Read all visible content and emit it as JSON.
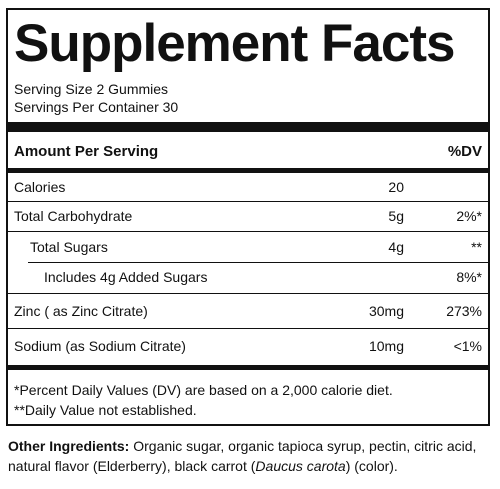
{
  "title": "Supplement Facts",
  "serving_size": "Serving Size 2 Gummies",
  "servings_per_container": "Servings Per Container 30",
  "header": {
    "amount": "Amount Per Serving",
    "dv": "%DV"
  },
  "rows": [
    {
      "name": "Calories",
      "amount": "20",
      "dv": ""
    },
    {
      "name": "Total Carbohydrate",
      "amount": "5g",
      "dv": "2%*"
    },
    {
      "name": "Total Sugars",
      "amount": "4g",
      "dv": "**"
    },
    {
      "name": "Includes 4g Added Sugars",
      "amount": "",
      "dv": "8%*"
    },
    {
      "name": "Zinc ( as Zinc Citrate)",
      "amount": "30mg",
      "dv": "273%"
    },
    {
      "name": "Sodium (as Sodium Citrate)",
      "amount": "10mg",
      "dv": "<1%"
    }
  ],
  "footnotes": [
    "*Percent Daily Values (DV) are based on a 2,000 calorie diet.",
    "**Daily Value not established."
  ],
  "ingredients": {
    "label": "Other Ingredients:",
    "text_before": " Organic sugar, organic tapioca syrup, pectin, citric acid, natural flavor (Elderberry), black carrot (",
    "italic": "Daucus carota",
    "text_after": ") (color)."
  }
}
